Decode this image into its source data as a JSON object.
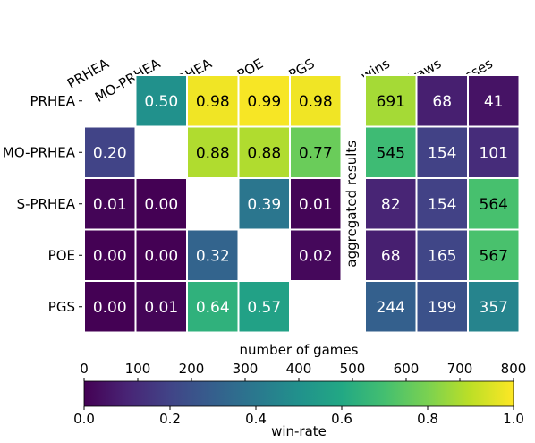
{
  "chart_data": [
    {
      "type": "heatmap",
      "title": "",
      "rows": [
        "PRHEA",
        "MO-PRHEA",
        "S-PRHEA",
        "POE",
        "PGS"
      ],
      "columns": [
        "PRHEA",
        "MO-PRHEA",
        "S-PRHEA",
        "POE",
        "PGS"
      ],
      "values": [
        [
          null,
          0.5,
          0.98,
          0.99,
          0.98
        ],
        [
          0.2,
          null,
          0.88,
          0.88,
          0.77
        ],
        [
          0.01,
          0.0,
          null,
          0.39,
          0.01
        ],
        [
          0.0,
          0.0,
          0.32,
          null,
          0.02
        ],
        [
          0.0,
          0.01,
          0.64,
          0.57,
          null
        ]
      ],
      "labels": [
        [
          "",
          "0.50",
          "0.98",
          "0.99",
          "0.98"
        ],
        [
          "0.20",
          "",
          "0.88",
          "0.88",
          "0.77"
        ],
        [
          "0.01",
          "0.00",
          "",
          "0.39",
          "0.01"
        ],
        [
          "0.00",
          "0.00",
          "0.32",
          "",
          "0.02"
        ],
        [
          "0.00",
          "0.01",
          "0.64",
          "0.57",
          ""
        ]
      ],
      "colorbar": {
        "label": "win-rate",
        "range": [
          0,
          1
        ],
        "ticks": [
          0.0,
          0.2,
          0.4,
          0.6,
          0.8,
          1.0
        ],
        "tick_labels": [
          "0.0",
          "0.2",
          "0.4",
          "0.6",
          "0.8",
          "1.0"
        ]
      }
    },
    {
      "type": "heatmap",
      "title": "",
      "side_label": "aggregated results",
      "rows": [
        "PRHEA",
        "MO-PRHEA",
        "S-PRHEA",
        "POE",
        "PGS"
      ],
      "columns": [
        "wins",
        "draws",
        "losses"
      ],
      "values": [
        [
          691,
          68,
          41
        ],
        [
          545,
          154,
          101
        ],
        [
          82,
          154,
          564
        ],
        [
          68,
          165,
          567
        ],
        [
          244,
          199,
          357
        ]
      ],
      "colorbar": {
        "label": "number of games",
        "range": [
          0,
          800
        ],
        "ticks": [
          0,
          100,
          200,
          300,
          400,
          500,
          600,
          700,
          800
        ],
        "tick_labels": [
          "0",
          "100",
          "200",
          "300",
          "400",
          "500",
          "600",
          "700",
          "800"
        ]
      }
    }
  ]
}
